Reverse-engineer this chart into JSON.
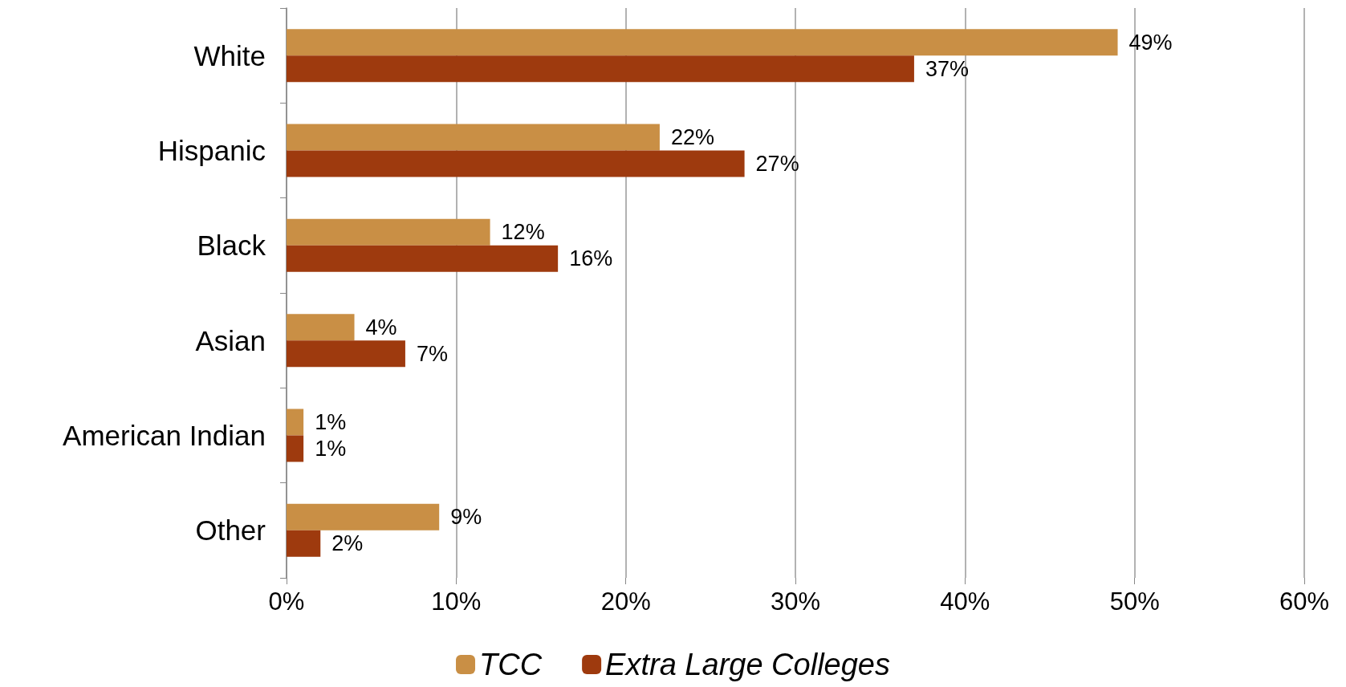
{
  "chart_data": {
    "type": "bar",
    "orientation": "horizontal",
    "categories": [
      "White",
      "Hispanic",
      "Black",
      "Asian",
      "American Indian",
      "Other"
    ],
    "series": [
      {
        "name": "TCC",
        "color": "#c98f45",
        "values": [
          49,
          22,
          12,
          4,
          1,
          9
        ],
        "value_labels": [
          "49%",
          "22%",
          "12%",
          "4%",
          "1%",
          "9%"
        ]
      },
      {
        "name": "Extra Large Colleges",
        "color": "#9e3a0e",
        "values": [
          37,
          27,
          16,
          7,
          1,
          2
        ],
        "value_labels": [
          "37%",
          "27%",
          "16%",
          "7%",
          "1%",
          "2%"
        ]
      }
    ],
    "xlim": [
      0,
      60
    ],
    "xticks": [
      {
        "value": 0,
        "label": "0%"
      },
      {
        "value": 10,
        "label": "10%"
      },
      {
        "value": 20,
        "label": "20%"
      },
      {
        "value": 30,
        "label": "30%"
      },
      {
        "value": 40,
        "label": "40%"
      },
      {
        "value": 50,
        "label": "50%"
      },
      {
        "value": 60,
        "label": "60%"
      }
    ],
    "grid": "x",
    "legend": "bottom"
  }
}
